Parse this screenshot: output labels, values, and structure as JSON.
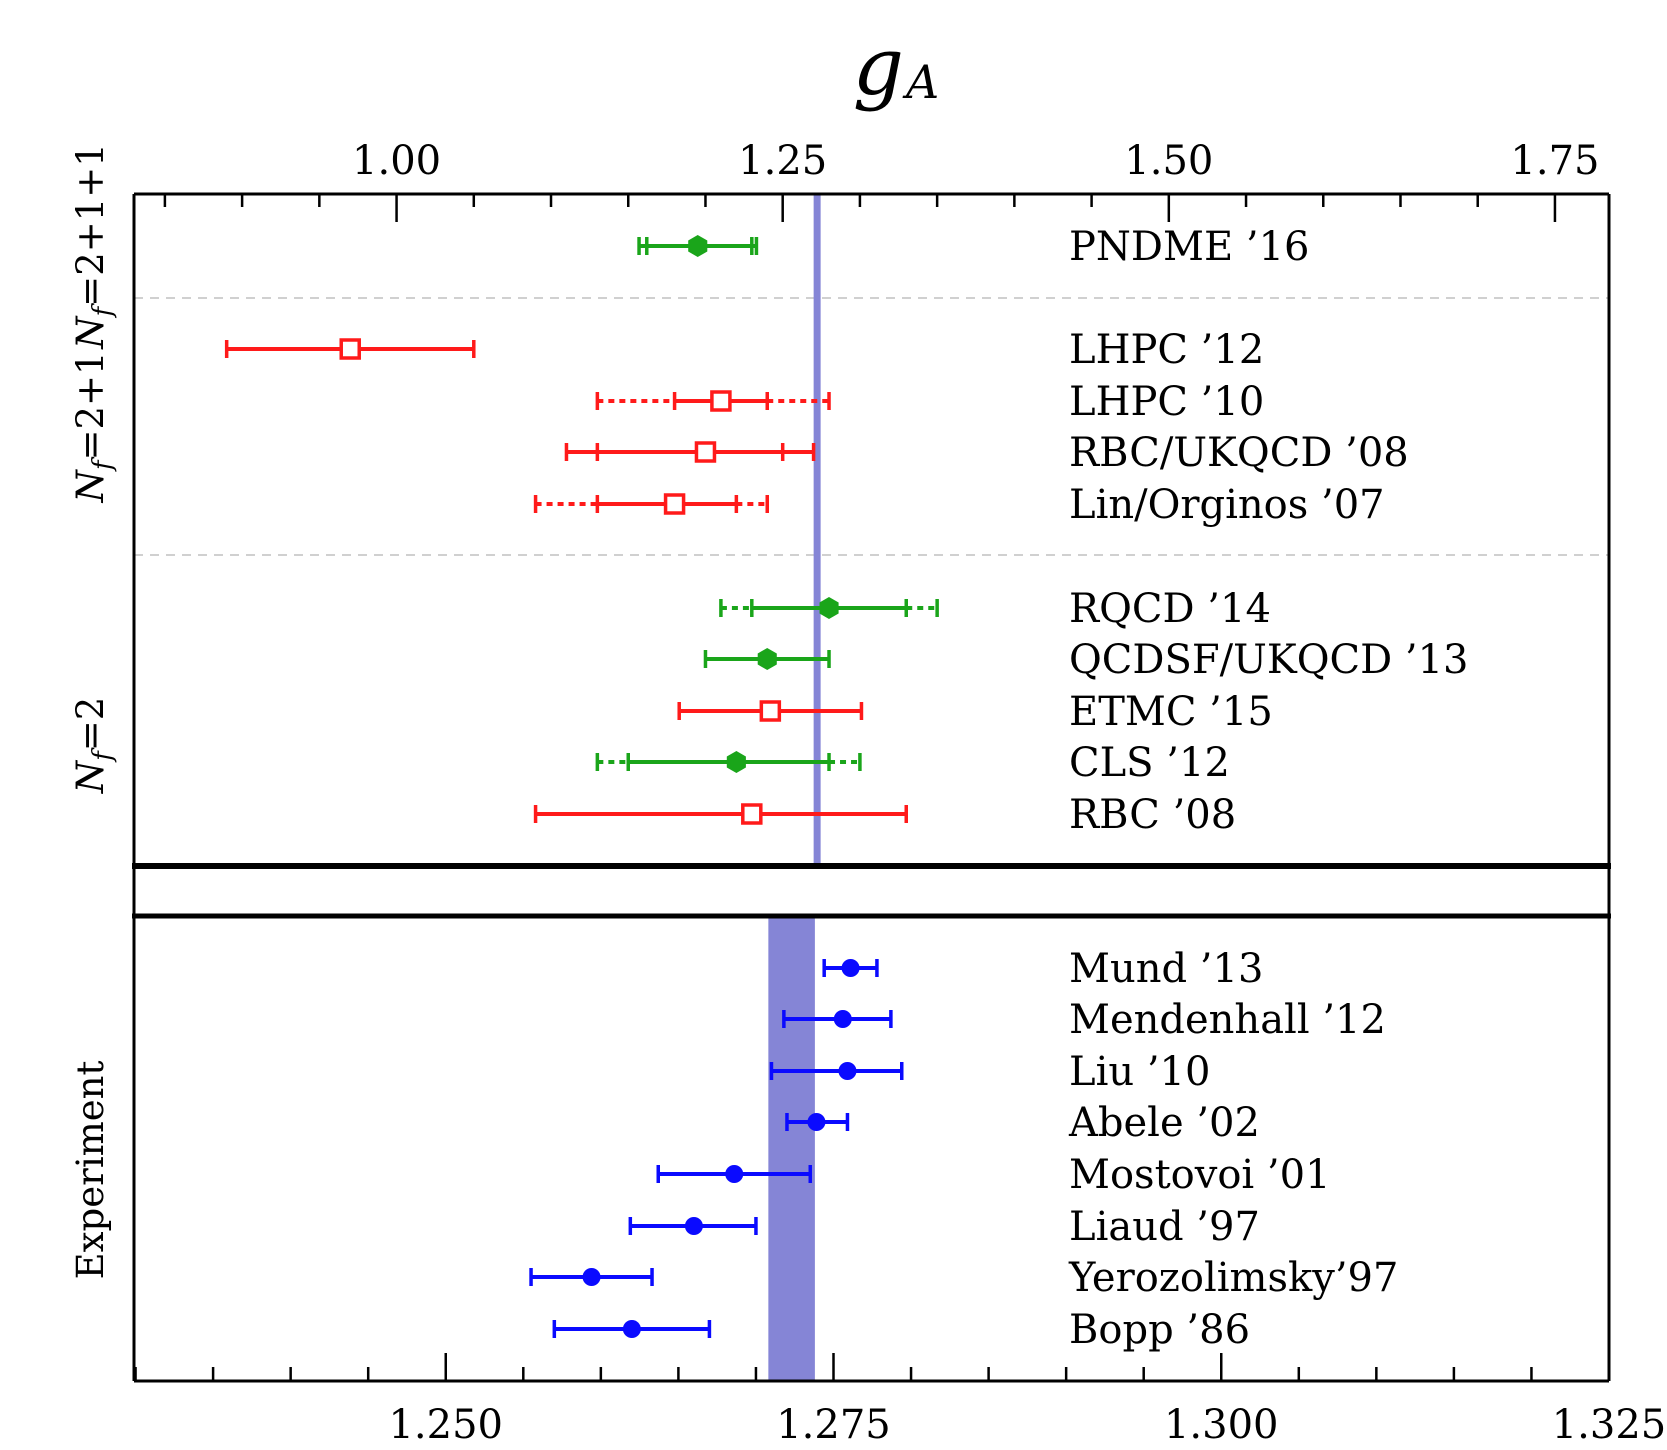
{
  "colors": {
    "frame": "#000000",
    "lattice_green": "#1aa51a",
    "lattice_red": "#ff1a1a",
    "experiment_blue": "#0a0aff",
    "pdg_band": "#8585d6",
    "divider": "#b4b4b4"
  },
  "chart_data": {
    "type": "forest-plot",
    "title": "g",
    "title_subscript": "A",
    "pdg_average": 1.2723,
    "pdg_band": [
      1.2708,
      1.2738
    ],
    "top_axis": {
      "range": [
        0.83,
        1.785
      ],
      "ticks": [
        1.0,
        1.25,
        1.5,
        1.75
      ],
      "tick_labels": [
        "1.00",
        "1.25",
        "1.50",
        "1.75"
      ],
      "minor_step": 0.05
    },
    "bottom_axis": {
      "range": [
        1.2299,
        1.325
      ],
      "ticks": [
        1.25,
        1.275,
        1.3,
        1.325
      ],
      "tick_labels": [
        "1.250",
        "1.275",
        "1.300",
        "1.325"
      ],
      "minor_step": 0.005
    },
    "groups": [
      {
        "label": "N",
        "label_sub": "f",
        "label_rest": "=2+1+1"
      },
      {
        "label": "N",
        "label_sub": "f",
        "label_rest": "=2+1"
      },
      {
        "label": "N",
        "label_sub": "f",
        "label_rest": "=2"
      },
      {
        "label": "Experiment",
        "label_sub": "",
        "label_rest": ""
      }
    ],
    "lattice_points": [
      {
        "label": "PNDME ’16",
        "group": 0,
        "value": 1.195,
        "err_lo": 1.162,
        "err_hi": 1.23,
        "sys_lo": 1.157,
        "sys_hi": 1.233,
        "marker": "filled-hexagon",
        "color": "green",
        "dotted": false
      },
      {
        "label": "LHPC ’12",
        "group": 1,
        "value": 0.97,
        "err_lo": 0.89,
        "err_hi": 1.05,
        "sys_lo": 0.89,
        "sys_hi": 1.05,
        "marker": "open-square",
        "color": "red",
        "dotted": false
      },
      {
        "label": "LHPC ’10",
        "group": 1,
        "value": 1.21,
        "err_lo": 1.18,
        "err_hi": 1.24,
        "sys_lo": 1.13,
        "sys_hi": 1.28,
        "marker": "open-square",
        "color": "red",
        "dotted": true
      },
      {
        "label": "RBC/UKQCD ’08",
        "group": 1,
        "value": 1.2,
        "err_lo": 1.13,
        "err_hi": 1.25,
        "sys_lo": 1.11,
        "sys_hi": 1.27,
        "marker": "open-square",
        "color": "red",
        "dotted": false
      },
      {
        "label": "Lin/Orginos ’07",
        "group": 1,
        "value": 1.18,
        "err_lo": 1.13,
        "err_hi": 1.22,
        "sys_lo": 1.09,
        "sys_hi": 1.24,
        "marker": "open-square",
        "color": "red",
        "dotted": true
      },
      {
        "label": "RQCD ’14",
        "group": 2,
        "value": 1.28,
        "err_lo": 1.23,
        "err_hi": 1.33,
        "sys_lo": 1.21,
        "sys_hi": 1.35,
        "marker": "filled-hexagon",
        "color": "green",
        "dotted": true
      },
      {
        "label": "QCDSF/UKQCD ’13",
        "group": 2,
        "value": 1.24,
        "err_lo": 1.2,
        "err_hi": 1.28,
        "sys_lo": 1.2,
        "sys_hi": 1.28,
        "marker": "filled-hexagon",
        "color": "green",
        "dotted": false
      },
      {
        "label": "ETMC ’15",
        "group": 2,
        "value": 1.242,
        "err_lo": 1.183,
        "err_hi": 1.301,
        "sys_lo": 1.183,
        "sys_hi": 1.301,
        "marker": "open-square",
        "color": "red",
        "dotted": false
      },
      {
        "label": "CLS ’12",
        "group": 2,
        "value": 1.22,
        "err_lo": 1.15,
        "err_hi": 1.28,
        "sys_lo": 1.13,
        "sys_hi": 1.3,
        "marker": "filled-hexagon",
        "color": "green",
        "dotted": true
      },
      {
        "label": "RBC ’08",
        "group": 2,
        "value": 1.23,
        "err_lo": 1.09,
        "err_hi": 1.33,
        "sys_lo": 1.09,
        "sys_hi": 1.33,
        "marker": "open-square",
        "color": "red",
        "dotted": false
      }
    ],
    "experiment_points": [
      {
        "label": "Mund ’13",
        "value": 1.2761,
        "err_lo": 1.2744,
        "err_hi": 1.2778
      },
      {
        "label": "Mendenhall ’12",
        "value": 1.2756,
        "err_lo": 1.2718,
        "err_hi": 1.2787
      },
      {
        "label": "Liu ’10",
        "value": 1.2759,
        "err_lo": 1.271,
        "err_hi": 1.2794
      },
      {
        "label": "Abele ’02",
        "value": 1.2739,
        "err_lo": 1.272,
        "err_hi": 1.2759
      },
      {
        "label": "Mostovoi ’01",
        "value": 1.2686,
        "err_lo": 1.2637,
        "err_hi": 1.2735
      },
      {
        "label": "Liaud ’97",
        "value": 1.266,
        "err_lo": 1.2619,
        "err_hi": 1.27
      },
      {
        "label": "Yerozolimsky’97",
        "value": 1.2594,
        "err_lo": 1.2555,
        "err_hi": 1.2633
      },
      {
        "label": "Bopp ’86",
        "value": 1.262,
        "err_lo": 1.257,
        "err_hi": 1.267
      }
    ]
  }
}
